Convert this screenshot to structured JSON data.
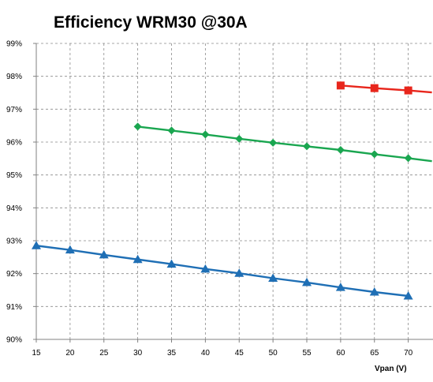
{
  "chart_data": {
    "type": "line",
    "title": "Efficiency WRM30 @30A",
    "xlabel": "Vpan (V)",
    "ylabel": "",
    "xlim": [
      15,
      73.5
    ],
    "ylim": [
      90,
      99
    ],
    "x_ticks": [
      15,
      20,
      25,
      30,
      35,
      40,
      45,
      50,
      55,
      60,
      65,
      70
    ],
    "x_tick_labels": [
      "15",
      "20",
      "25",
      "30",
      "35",
      "40",
      "45",
      "50",
      "55",
      "60",
      "65",
      "70"
    ],
    "y_ticks": [
      90,
      91,
      92,
      93,
      94,
      95,
      96,
      97,
      98,
      99
    ],
    "y_tick_labels": [
      "90%",
      "91%",
      "92%",
      "93%",
      "94%",
      "95%",
      "96%",
      "97%",
      "98%",
      "99%"
    ],
    "grid": true,
    "legend": "none",
    "series": [
      {
        "color": "#1f6fb5",
        "marker": "triangle",
        "x": [
          15,
          20,
          25,
          30,
          35,
          40,
          45,
          50,
          55,
          60,
          65,
          70
        ],
        "y": [
          92.85,
          92.72,
          92.57,
          92.43,
          92.29,
          92.14,
          92.01,
          91.86,
          91.73,
          91.58,
          91.44,
          91.32
        ]
      },
      {
        "color": "#1aa650",
        "marker": "diamond",
        "x": [
          30,
          35,
          40,
          45,
          50,
          55,
          60,
          65,
          70,
          73.5
        ],
        "y": [
          96.47,
          96.35,
          96.23,
          96.1,
          95.98,
          95.87,
          95.76,
          95.63,
          95.51,
          95.42
        ],
        "marker_count": 9
      },
      {
        "color": "#e8261c",
        "marker": "square",
        "x": [
          60,
          65,
          70,
          73.5
        ],
        "y": [
          97.72,
          97.64,
          97.57,
          97.51
        ],
        "marker_count": 3
      }
    ]
  }
}
